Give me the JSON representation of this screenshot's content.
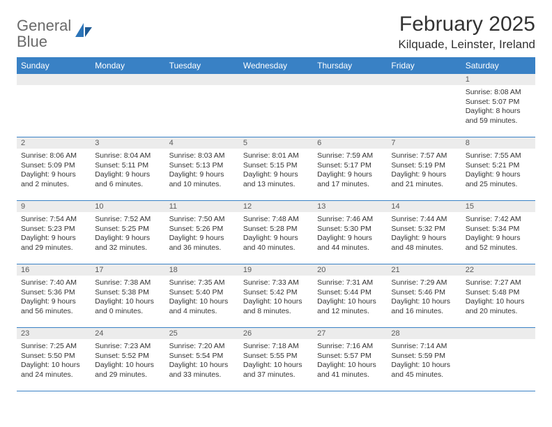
{
  "logo": {
    "text_gray": "General",
    "text_blue": "Blue"
  },
  "title": "February 2025",
  "location": "Kilquade, Leinster, Ireland",
  "colors": {
    "header_bg": "#3981c5",
    "header_text": "#ffffff",
    "daynum_bg": "#ececec",
    "border": "#3981c5",
    "text": "#333333",
    "logo_gray": "#6a6a6a",
    "logo_blue": "#2b74b8"
  },
  "day_names": [
    "Sunday",
    "Monday",
    "Tuesday",
    "Wednesday",
    "Thursday",
    "Friday",
    "Saturday"
  ],
  "weeks": [
    [
      {
        "n": "",
        "sunrise": "",
        "sunset": "",
        "daylight": ""
      },
      {
        "n": "",
        "sunrise": "",
        "sunset": "",
        "daylight": ""
      },
      {
        "n": "",
        "sunrise": "",
        "sunset": "",
        "daylight": ""
      },
      {
        "n": "",
        "sunrise": "",
        "sunset": "",
        "daylight": ""
      },
      {
        "n": "",
        "sunrise": "",
        "sunset": "",
        "daylight": ""
      },
      {
        "n": "",
        "sunrise": "",
        "sunset": "",
        "daylight": ""
      },
      {
        "n": "1",
        "sunrise": "Sunrise: 8:08 AM",
        "sunset": "Sunset: 5:07 PM",
        "daylight": "Daylight: 8 hours and 59 minutes."
      }
    ],
    [
      {
        "n": "2",
        "sunrise": "Sunrise: 8:06 AM",
        "sunset": "Sunset: 5:09 PM",
        "daylight": "Daylight: 9 hours and 2 minutes."
      },
      {
        "n": "3",
        "sunrise": "Sunrise: 8:04 AM",
        "sunset": "Sunset: 5:11 PM",
        "daylight": "Daylight: 9 hours and 6 minutes."
      },
      {
        "n": "4",
        "sunrise": "Sunrise: 8:03 AM",
        "sunset": "Sunset: 5:13 PM",
        "daylight": "Daylight: 9 hours and 10 minutes."
      },
      {
        "n": "5",
        "sunrise": "Sunrise: 8:01 AM",
        "sunset": "Sunset: 5:15 PM",
        "daylight": "Daylight: 9 hours and 13 minutes."
      },
      {
        "n": "6",
        "sunrise": "Sunrise: 7:59 AM",
        "sunset": "Sunset: 5:17 PM",
        "daylight": "Daylight: 9 hours and 17 minutes."
      },
      {
        "n": "7",
        "sunrise": "Sunrise: 7:57 AM",
        "sunset": "Sunset: 5:19 PM",
        "daylight": "Daylight: 9 hours and 21 minutes."
      },
      {
        "n": "8",
        "sunrise": "Sunrise: 7:55 AM",
        "sunset": "Sunset: 5:21 PM",
        "daylight": "Daylight: 9 hours and 25 minutes."
      }
    ],
    [
      {
        "n": "9",
        "sunrise": "Sunrise: 7:54 AM",
        "sunset": "Sunset: 5:23 PM",
        "daylight": "Daylight: 9 hours and 29 minutes."
      },
      {
        "n": "10",
        "sunrise": "Sunrise: 7:52 AM",
        "sunset": "Sunset: 5:25 PM",
        "daylight": "Daylight: 9 hours and 32 minutes."
      },
      {
        "n": "11",
        "sunrise": "Sunrise: 7:50 AM",
        "sunset": "Sunset: 5:26 PM",
        "daylight": "Daylight: 9 hours and 36 minutes."
      },
      {
        "n": "12",
        "sunrise": "Sunrise: 7:48 AM",
        "sunset": "Sunset: 5:28 PM",
        "daylight": "Daylight: 9 hours and 40 minutes."
      },
      {
        "n": "13",
        "sunrise": "Sunrise: 7:46 AM",
        "sunset": "Sunset: 5:30 PM",
        "daylight": "Daylight: 9 hours and 44 minutes."
      },
      {
        "n": "14",
        "sunrise": "Sunrise: 7:44 AM",
        "sunset": "Sunset: 5:32 PM",
        "daylight": "Daylight: 9 hours and 48 minutes."
      },
      {
        "n": "15",
        "sunrise": "Sunrise: 7:42 AM",
        "sunset": "Sunset: 5:34 PM",
        "daylight": "Daylight: 9 hours and 52 minutes."
      }
    ],
    [
      {
        "n": "16",
        "sunrise": "Sunrise: 7:40 AM",
        "sunset": "Sunset: 5:36 PM",
        "daylight": "Daylight: 9 hours and 56 minutes."
      },
      {
        "n": "17",
        "sunrise": "Sunrise: 7:38 AM",
        "sunset": "Sunset: 5:38 PM",
        "daylight": "Daylight: 10 hours and 0 minutes."
      },
      {
        "n": "18",
        "sunrise": "Sunrise: 7:35 AM",
        "sunset": "Sunset: 5:40 PM",
        "daylight": "Daylight: 10 hours and 4 minutes."
      },
      {
        "n": "19",
        "sunrise": "Sunrise: 7:33 AM",
        "sunset": "Sunset: 5:42 PM",
        "daylight": "Daylight: 10 hours and 8 minutes."
      },
      {
        "n": "20",
        "sunrise": "Sunrise: 7:31 AM",
        "sunset": "Sunset: 5:44 PM",
        "daylight": "Daylight: 10 hours and 12 minutes."
      },
      {
        "n": "21",
        "sunrise": "Sunrise: 7:29 AM",
        "sunset": "Sunset: 5:46 PM",
        "daylight": "Daylight: 10 hours and 16 minutes."
      },
      {
        "n": "22",
        "sunrise": "Sunrise: 7:27 AM",
        "sunset": "Sunset: 5:48 PM",
        "daylight": "Daylight: 10 hours and 20 minutes."
      }
    ],
    [
      {
        "n": "23",
        "sunrise": "Sunrise: 7:25 AM",
        "sunset": "Sunset: 5:50 PM",
        "daylight": "Daylight: 10 hours and 24 minutes."
      },
      {
        "n": "24",
        "sunrise": "Sunrise: 7:23 AM",
        "sunset": "Sunset: 5:52 PM",
        "daylight": "Daylight: 10 hours and 29 minutes."
      },
      {
        "n": "25",
        "sunrise": "Sunrise: 7:20 AM",
        "sunset": "Sunset: 5:54 PM",
        "daylight": "Daylight: 10 hours and 33 minutes."
      },
      {
        "n": "26",
        "sunrise": "Sunrise: 7:18 AM",
        "sunset": "Sunset: 5:55 PM",
        "daylight": "Daylight: 10 hours and 37 minutes."
      },
      {
        "n": "27",
        "sunrise": "Sunrise: 7:16 AM",
        "sunset": "Sunset: 5:57 PM",
        "daylight": "Daylight: 10 hours and 41 minutes."
      },
      {
        "n": "28",
        "sunrise": "Sunrise: 7:14 AM",
        "sunset": "Sunset: 5:59 PM",
        "daylight": "Daylight: 10 hours and 45 minutes."
      },
      {
        "n": "",
        "sunrise": "",
        "sunset": "",
        "daylight": ""
      }
    ]
  ]
}
